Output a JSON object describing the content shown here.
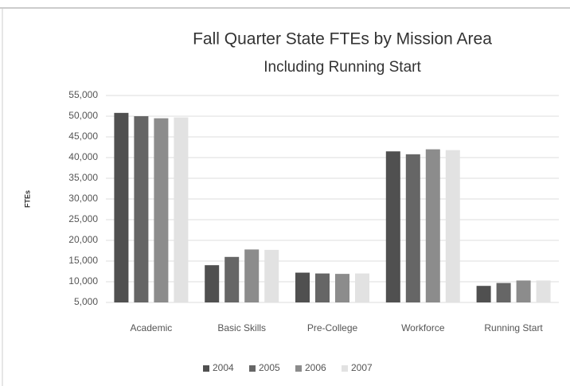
{
  "chart_data": {
    "type": "bar",
    "title": "Fall Quarter State FTEs by Mission Area",
    "subtitle": "Including Running Start",
    "y_label": "FTEs",
    "categories": [
      "Academic",
      "Basic Skills",
      "Pre-College",
      "Workforce",
      "Running Start"
    ],
    "series": [
      {
        "name": "2004",
        "color": "#505050",
        "values": [
          50800,
          14000,
          12200,
          41500,
          9000
        ]
      },
      {
        "name": "2005",
        "color": "#666666",
        "values": [
          50000,
          16000,
          12000,
          40800,
          9700
        ]
      },
      {
        "name": "2006",
        "color": "#8c8c8c",
        "values": [
          49500,
          17800,
          11900,
          42000,
          10300
        ]
      },
      {
        "name": "2007",
        "color": "#e2e2e2",
        "values": [
          49700,
          17700,
          12000,
          41800,
          10300
        ]
      }
    ],
    "ylim": [
      5000,
      55000
    ],
    "yticks": [
      {
        "value": 5000,
        "label": "5,000"
      },
      {
        "value": 10000,
        "label": "10,000"
      },
      {
        "value": 15000,
        "label": "15,000"
      },
      {
        "value": 20000,
        "label": "20,000"
      },
      {
        "value": 25000,
        "label": "25,000"
      },
      {
        "value": 30000,
        "label": "30,000"
      },
      {
        "value": 35000,
        "label": "35,000"
      },
      {
        "value": 40000,
        "label": "40,000"
      },
      {
        "value": 45000,
        "label": "45,000"
      },
      {
        "value": 50000,
        "label": "50,000"
      },
      {
        "value": 55000,
        "label": "55,000"
      }
    ],
    "grid": true,
    "legend": "bottom"
  }
}
